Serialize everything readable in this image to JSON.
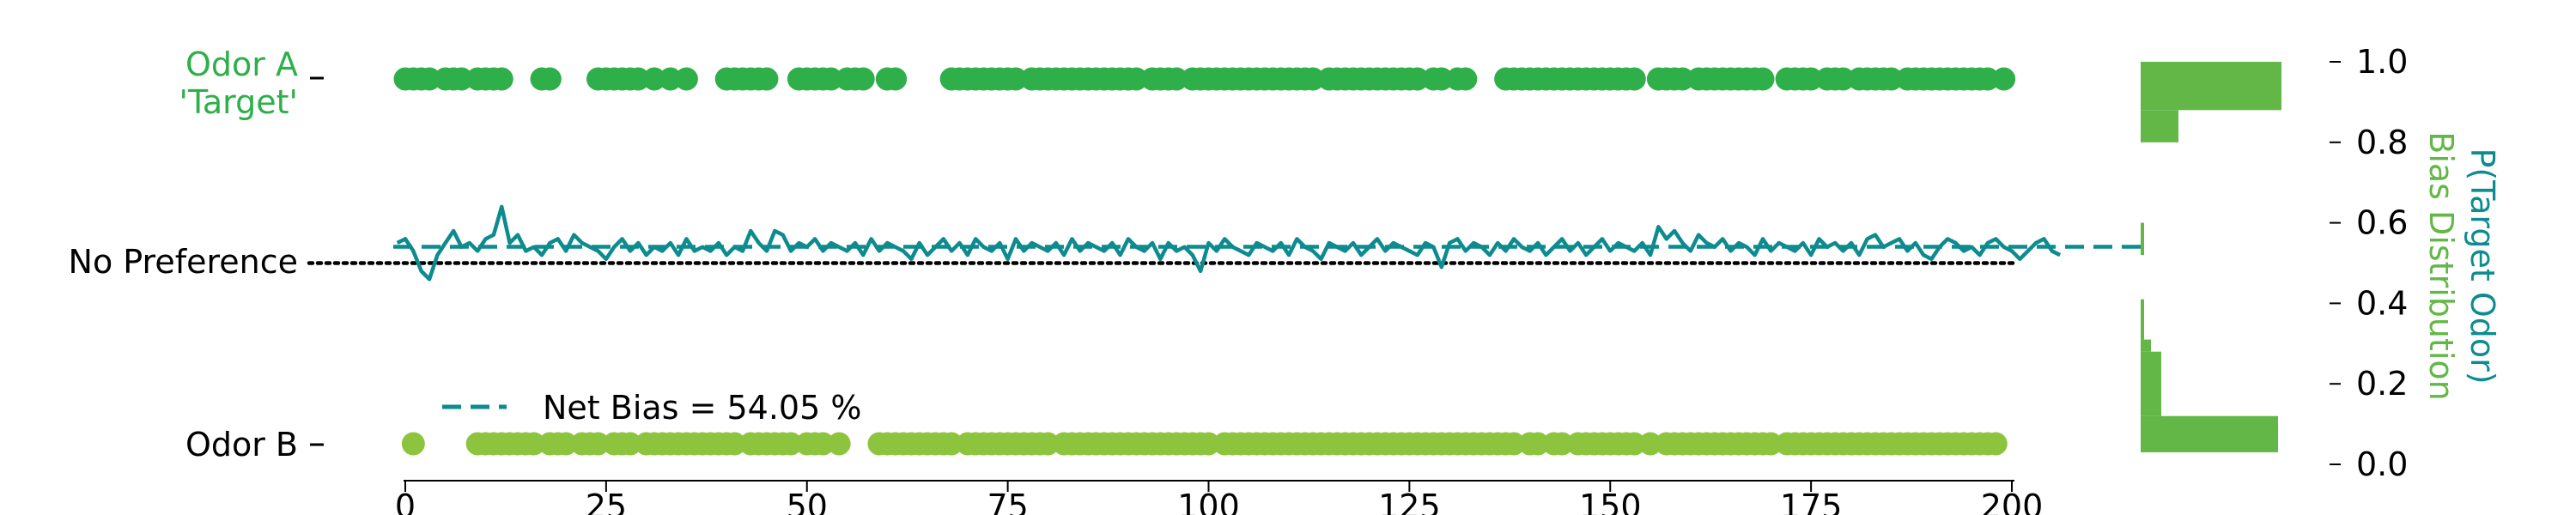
{
  "colors": {
    "target": "#2eaf4a",
    "other": "#8dc43e",
    "bias_line": "#0d8b8f",
    "histogram": "#62b746",
    "axis": "#000000"
  },
  "labels": {
    "odor_a": "Odor A",
    "target": "'Target'",
    "no_preference": "No Preference",
    "odor_b": "Odor B",
    "right_ylabel": "P(Target Odor)",
    "histogram_label": "Bias Distribution"
  },
  "legend": {
    "text": "Net Bias = 54.05 %",
    "placement": "bottom-left"
  },
  "chart_data": {
    "type": "scatter",
    "title": "",
    "x_range": [
      0,
      200
    ],
    "x_ticks": [
      0,
      25,
      50,
      75,
      100,
      125,
      150,
      175,
      200
    ],
    "y_ticks": [
      0.0,
      0.2,
      0.4,
      0.6,
      0.8,
      1.0
    ],
    "ylim": [
      0,
      1
    ],
    "net_bias": 0.5405,
    "no_preference_level": 0.5,
    "odor_a_trials": [
      0,
      1,
      2,
      3,
      5,
      6,
      7,
      9,
      10,
      11,
      12,
      17,
      18,
      24,
      25,
      26,
      27,
      28,
      29,
      31,
      33,
      35,
      40,
      41,
      42,
      43,
      44,
      45,
      49,
      50,
      51,
      52,
      53,
      55,
      56,
      57,
      60,
      61,
      68,
      69,
      70,
      71,
      72,
      73,
      74,
      75,
      76,
      78,
      79,
      80,
      81,
      82,
      83,
      84,
      85,
      86,
      87,
      88,
      89,
      90,
      91,
      93,
      94,
      95,
      96,
      98,
      99,
      100,
      101,
      102,
      103,
      104,
      105,
      106,
      107,
      108,
      109,
      110,
      111,
      112,
      113,
      115,
      116,
      117,
      118,
      119,
      120,
      121,
      122,
      123,
      124,
      125,
      126,
      128,
      129,
      131,
      132,
      137,
      138,
      139,
      140,
      141,
      142,
      143,
      144,
      145,
      146,
      147,
      148,
      149,
      150,
      151,
      152,
      153,
      156,
      157,
      158,
      159,
      161,
      162,
      163,
      164,
      165,
      166,
      167,
      168,
      169,
      172,
      173,
      174,
      175,
      177,
      178,
      179,
      181,
      182,
      183,
      184,
      185,
      187,
      188,
      189,
      190,
      191,
      192,
      193,
      194,
      195,
      196,
      197,
      199
    ],
    "odor_b_trials": [
      1,
      9,
      10,
      11,
      12,
      13,
      14,
      15,
      16,
      18,
      19,
      20,
      22,
      23,
      24,
      26,
      27,
      28,
      30,
      31,
      32,
      33,
      34,
      35,
      36,
      37,
      38,
      39,
      40,
      41,
      43,
      44,
      45,
      46,
      47,
      48,
      50,
      51,
      52,
      54,
      59,
      60,
      61,
      62,
      63,
      64,
      65,
      66,
      67,
      68,
      70,
      71,
      72,
      73,
      74,
      75,
      76,
      77,
      78,
      79,
      80,
      82,
      83,
      84,
      85,
      86,
      87,
      88,
      89,
      90,
      91,
      92,
      93,
      94,
      95,
      96,
      97,
      98,
      99,
      100,
      102,
      103,
      104,
      105,
      106,
      107,
      108,
      109,
      110,
      111,
      112,
      113,
      114,
      115,
      116,
      117,
      118,
      119,
      120,
      121,
      122,
      123,
      124,
      125,
      126,
      127,
      128,
      129,
      130,
      131,
      132,
      133,
      134,
      135,
      136,
      137,
      138,
      140,
      141,
      143,
      144,
      146,
      147,
      148,
      149,
      150,
      151,
      152,
      153,
      155,
      157,
      158,
      159,
      160,
      161,
      162,
      163,
      164,
      165,
      166,
      167,
      168,
      169,
      170,
      172,
      173,
      174,
      175,
      176,
      177,
      178,
      179,
      180,
      181,
      182,
      183,
      184,
      185,
      186,
      187,
      188,
      189,
      190,
      191,
      192,
      193,
      194,
      195,
      196,
      197,
      198
    ],
    "bias_trace": [
      0.55,
      0.56,
      0.53,
      0.48,
      0.46,
      0.52,
      0.55,
      0.58,
      0.54,
      0.55,
      0.53,
      0.56,
      0.57,
      0.64,
      0.55,
      0.57,
      0.53,
      0.54,
      0.52,
      0.55,
      0.56,
      0.53,
      0.57,
      0.55,
      0.54,
      0.53,
      0.51,
      0.54,
      0.56,
      0.53,
      0.55,
      0.52,
      0.54,
      0.53,
      0.55,
      0.52,
      0.56,
      0.53,
      0.54,
      0.53,
      0.55,
      0.52,
      0.54,
      0.53,
      0.58,
      0.55,
      0.53,
      0.58,
      0.57,
      0.53,
      0.55,
      0.54,
      0.56,
      0.53,
      0.55,
      0.54,
      0.53,
      0.55,
      0.52,
      0.56,
      0.53,
      0.55,
      0.54,
      0.53,
      0.51,
      0.55,
      0.52,
      0.54,
      0.56,
      0.53,
      0.55,
      0.52,
      0.56,
      0.54,
      0.53,
      0.55,
      0.51,
      0.56,
      0.53,
      0.55,
      0.54,
      0.53,
      0.55,
      0.52,
      0.56,
      0.53,
      0.55,
      0.54,
      0.53,
      0.55,
      0.52,
      0.56,
      0.54,
      0.53,
      0.55,
      0.51,
      0.55,
      0.53,
      0.54,
      0.52,
      0.48,
      0.55,
      0.53,
      0.56,
      0.54,
      0.53,
      0.52,
      0.55,
      0.54,
      0.53,
      0.55,
      0.52,
      0.56,
      0.54,
      0.53,
      0.51,
      0.55,
      0.54,
      0.53,
      0.55,
      0.52,
      0.54,
      0.56,
      0.53,
      0.55,
      0.54,
      0.53,
      0.52,
      0.55,
      0.54,
      0.49,
      0.55,
      0.56,
      0.53,
      0.55,
      0.54,
      0.52,
      0.55,
      0.53,
      0.56,
      0.54,
      0.53,
      0.55,
      0.52,
      0.54,
      0.56,
      0.53,
      0.55,
      0.52,
      0.54,
      0.56,
      0.53,
      0.55,
      0.54,
      0.53,
      0.55,
      0.52,
      0.59,
      0.56,
      0.58,
      0.55,
      0.53,
      0.57,
      0.55,
      0.54,
      0.56,
      0.53,
      0.55,
      0.54,
      0.52,
      0.56,
      0.53,
      0.55,
      0.54,
      0.53,
      0.55,
      0.52,
      0.56,
      0.54,
      0.55,
      0.53,
      0.55,
      0.52,
      0.56,
      0.57,
      0.54,
      0.55,
      0.56,
      0.53,
      0.55,
      0.52,
      0.51,
      0.54,
      0.56,
      0.55,
      0.53,
      0.54,
      0.52,
      0.55,
      0.56,
      0.54,
      0.53,
      0.51,
      0.53,
      0.55,
      0.56,
      0.53,
      0.52
    ],
    "histogram": {
      "upper": [
        {
          "bin": [
            0.8,
            0.88
          ],
          "count": 0.22
        },
        {
          "bin": [
            0.88,
            1.0
          ],
          "count": 0.82
        }
      ],
      "middle": [
        {
          "bin": [
            0.52,
            0.6
          ],
          "count": 0.02
        }
      ],
      "lower": [
        {
          "bin": [
            0.03,
            0.12
          ],
          "count": 0.8
        },
        {
          "bin": [
            0.12,
            0.28
          ],
          "count": 0.12
        },
        {
          "bin": [
            0.28,
            0.31
          ],
          "count": 0.06
        },
        {
          "bin": [
            0.31,
            0.41
          ],
          "count": 0.02
        }
      ]
    }
  }
}
